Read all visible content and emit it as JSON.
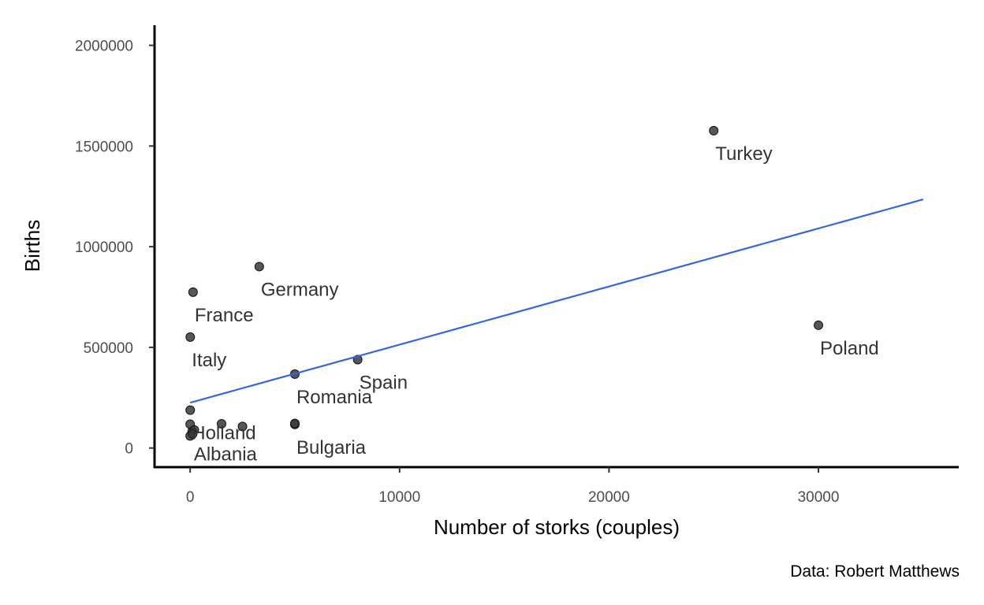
{
  "chart_data": {
    "type": "scatter",
    "xlabel": "Number of storks (couples)",
    "ylabel": "Births",
    "caption": "Data: Robert Matthews",
    "xlim": [
      -1700,
      36700
    ],
    "ylim": [
      -95000,
      2100000
    ],
    "x_ticks": [
      0,
      10000,
      20000,
      30000
    ],
    "x_tick_labels": [
      "0",
      "10000",
      "20000",
      "30000"
    ],
    "y_ticks": [
      0,
      500000,
      1000000,
      1500000,
      2000000
    ],
    "y_tick_labels": [
      "0",
      "500000",
      "1000000",
      "1500000",
      "2000000"
    ],
    "grid": false,
    "point_color": "#3a3a3a",
    "trend_color": "#3366e6",
    "points": [
      {
        "label": "Turkey",
        "x": 25000,
        "y": 1576000
      },
      {
        "label": "Germany",
        "x": 3300,
        "y": 901000
      },
      {
        "label": "France",
        "x": 140,
        "y": 774000
      },
      {
        "label": "Poland",
        "x": 30000,
        "y": 610000
      },
      {
        "label": "Italy",
        "x": 5,
        "y": 551000
      },
      {
        "label": "Spain",
        "x": 8000,
        "y": 439000
      },
      {
        "label": "Romania",
        "x": 5000,
        "y": 367000
      },
      {
        "label": "Bulgaria",
        "x": 5000,
        "y": 117000
      },
      {
        "label": "Holland",
        "x": 4,
        "y": 188000
      },
      {
        "label": "Albania",
        "x": 100,
        "y": 83000
      },
      {
        "label": "",
        "x": 0,
        "y": 118000
      },
      {
        "label": "",
        "x": 1500,
        "y": 120000
      },
      {
        "label": "",
        "x": 2500,
        "y": 107000
      },
      {
        "label": "",
        "x": 5000,
        "y": 122000
      },
      {
        "label": "",
        "x": 0,
        "y": 60000
      },
      {
        "label": "",
        "x": 200,
        "y": 90000
      },
      {
        "label": "",
        "x": 120,
        "y": 70000
      }
    ],
    "trend_line": {
      "x": [
        0,
        35000
      ],
      "y": [
        225000,
        1235000
      ]
    }
  }
}
